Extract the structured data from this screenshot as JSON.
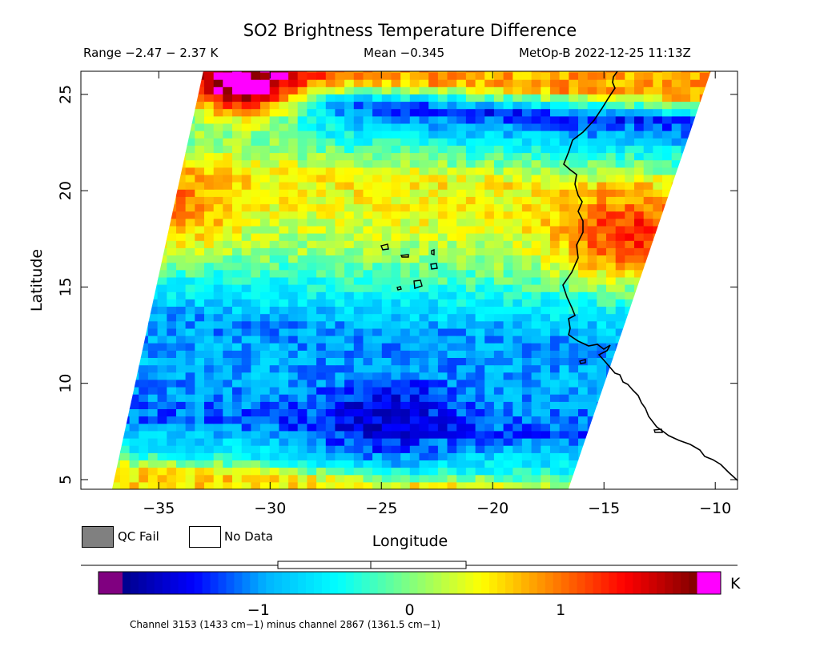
{
  "header": {
    "title": "SO2 Brightness Temperature Difference",
    "range_text": "Range −2.47 − 2.37 K",
    "mean_text": "Mean −0.345",
    "satellite_text": "MetOp-B 2022-12-25 11:13Z"
  },
  "legend": {
    "qc_fail_label": "QC Fail",
    "no_data_label": "No Data",
    "qc_fail_color": "#808080",
    "no_data_color": "#ffffff"
  },
  "colorbar": {
    "unit": "K",
    "tick_labels": [
      "−1",
      "0",
      "1"
    ],
    "tick_values": [
      -1,
      0,
      1
    ],
    "vmin": -1.9,
    "vmax": 1.9,
    "under_color": "#800080",
    "over_color": "#ff00ff",
    "colormap": [
      "#00008b",
      "#0000ff",
      "#00b4ff",
      "#00ffff",
      "#80ff80",
      "#ffff00",
      "#ff8000",
      "#ff0000",
      "#800000"
    ],
    "note": "Channel 3153 (1433 cm−1) minus channel 2867 (1361.5 cm−1)"
  },
  "chart_data": {
    "type": "heatmap",
    "title": "SO2 Brightness Temperature Difference",
    "xlabel": "Longitude",
    "ylabel": "Latitude",
    "xlim": [
      -38.5,
      -9
    ],
    "ylim": [
      4.5,
      26.2
    ],
    "x_ticks": [
      -35,
      -30,
      -25,
      -20,
      -15,
      -10
    ],
    "x_tick_labels": [
      "−35",
      "−30",
      "−25",
      "−20",
      "−15",
      "−10"
    ],
    "y_ticks": [
      5,
      10,
      15,
      20,
      25
    ],
    "y_tick_labels": [
      "5",
      "10",
      "15",
      "20",
      "25"
    ],
    "swath": {
      "top_left": [
        -33,
        26.2
      ],
      "top_right": [
        -10.2,
        26.2
      ],
      "bottom_left": [
        -37.1,
        4.5
      ],
      "bottom_right": [
        -16.6,
        4.5
      ]
    },
    "value_range": [
      -2.47,
      2.37
    ],
    "mean": -0.345,
    "field_bands": [
      {
        "lat": 25.5,
        "value": 0.8
      },
      {
        "lat": 24.2,
        "value": -1.4
      },
      {
        "lat": 22.5,
        "value": -0.5
      },
      {
        "lat": 20.5,
        "value": 0.5
      },
      {
        "lat": 18.5,
        "value": 0.4
      },
      {
        "lat": 16.5,
        "value": 0.1
      },
      {
        "lat": 14.5,
        "value": -0.5
      },
      {
        "lat": 12.5,
        "value": -1.0
      },
      {
        "lat": 10.0,
        "value": -0.9
      },
      {
        "lat": 7.5,
        "value": -1.2
      },
      {
        "lat": 5.5,
        "value": -0.4
      },
      {
        "lat": 4.6,
        "value": 0.6
      }
    ],
    "hotspots": [
      {
        "lon": -31.5,
        "lat": 25.5,
        "value": 2.2
      },
      {
        "lon": -14,
        "lat": 17.5,
        "value": 1.3
      },
      {
        "lon": -35.5,
        "lat": 19.0,
        "value": 1.1
      },
      {
        "lon": -25,
        "lat": 8,
        "value": -1.6
      }
    ]
  }
}
